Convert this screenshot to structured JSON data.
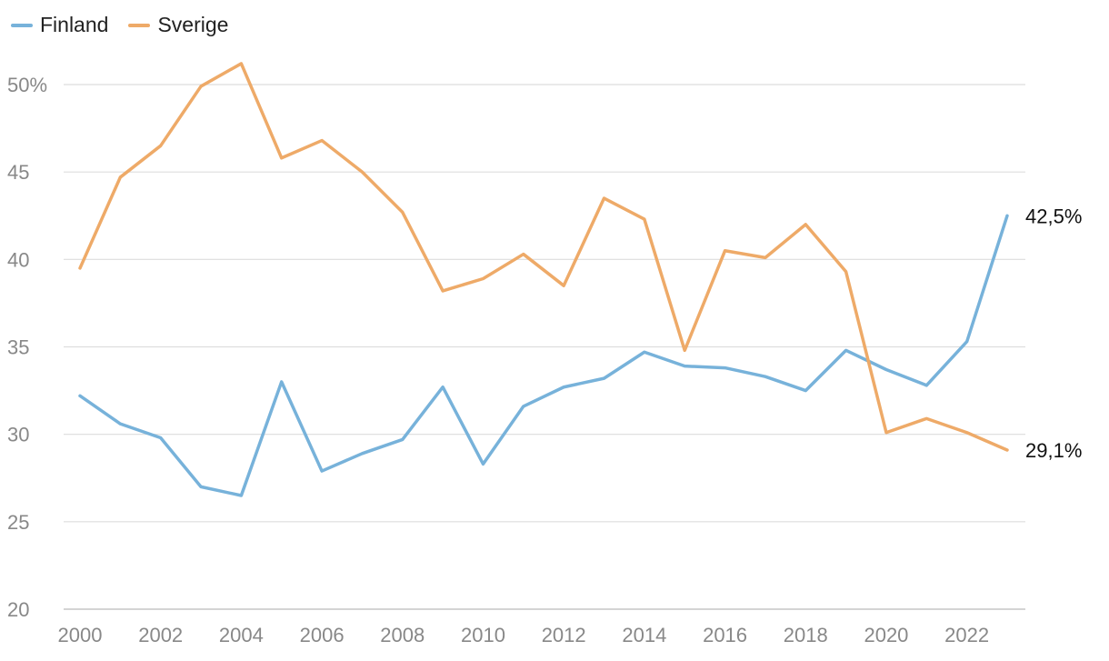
{
  "colors": {
    "finland": "#77b2da",
    "sverige": "#eeaa68",
    "grid": "#dddddd",
    "axis_text": "#888888",
    "label_text": "#111111"
  },
  "chart_data": {
    "type": "line",
    "title": "",
    "xlabel": "",
    "ylabel": "",
    "legend_placement": "top-left",
    "grid": true,
    "x": [
      2000,
      2001,
      2002,
      2003,
      2004,
      2005,
      2006,
      2007,
      2008,
      2009,
      2010,
      2011,
      2012,
      2013,
      2014,
      2015,
      2016,
      2017,
      2018,
      2019,
      2020,
      2021,
      2022,
      2023
    ],
    "xticks": [
      2000,
      2002,
      2004,
      2006,
      2008,
      2010,
      2012,
      2014,
      2016,
      2018,
      2020,
      2022
    ],
    "xtick_labels": [
      "2000",
      "2002",
      "2004",
      "2006",
      "2008",
      "2010",
      "2012",
      "2014",
      "2016",
      "2018",
      "2020",
      "2022"
    ],
    "xlim": [
      2000,
      2023
    ],
    "yticks": [
      20,
      25,
      30,
      35,
      40,
      45,
      50
    ],
    "ytick_labels": [
      "20",
      "25",
      "30",
      "35",
      "40",
      "45",
      "50%"
    ],
    "ylim": [
      20,
      50
    ],
    "series": [
      {
        "name": "Finland",
        "color": "#77b2da",
        "values": [
          32.2,
          30.6,
          29.8,
          27.0,
          26.5,
          33.0,
          27.9,
          28.9,
          29.7,
          32.7,
          28.3,
          31.6,
          32.7,
          33.2,
          34.7,
          33.9,
          33.8,
          33.3,
          32.5,
          34.8,
          33.7,
          32.8,
          35.3,
          42.5
        ],
        "end_label": "42,5%"
      },
      {
        "name": "Sverige",
        "color": "#eeaa68",
        "values": [
          39.5,
          44.7,
          46.5,
          49.9,
          51.2,
          45.8,
          46.8,
          45.0,
          42.7,
          38.2,
          38.9,
          40.3,
          38.5,
          43.5,
          42.3,
          34.8,
          40.5,
          40.1,
          42.0,
          39.3,
          30.1,
          30.9,
          30.1,
          29.1
        ],
        "end_label": "29,1%"
      }
    ]
  }
}
